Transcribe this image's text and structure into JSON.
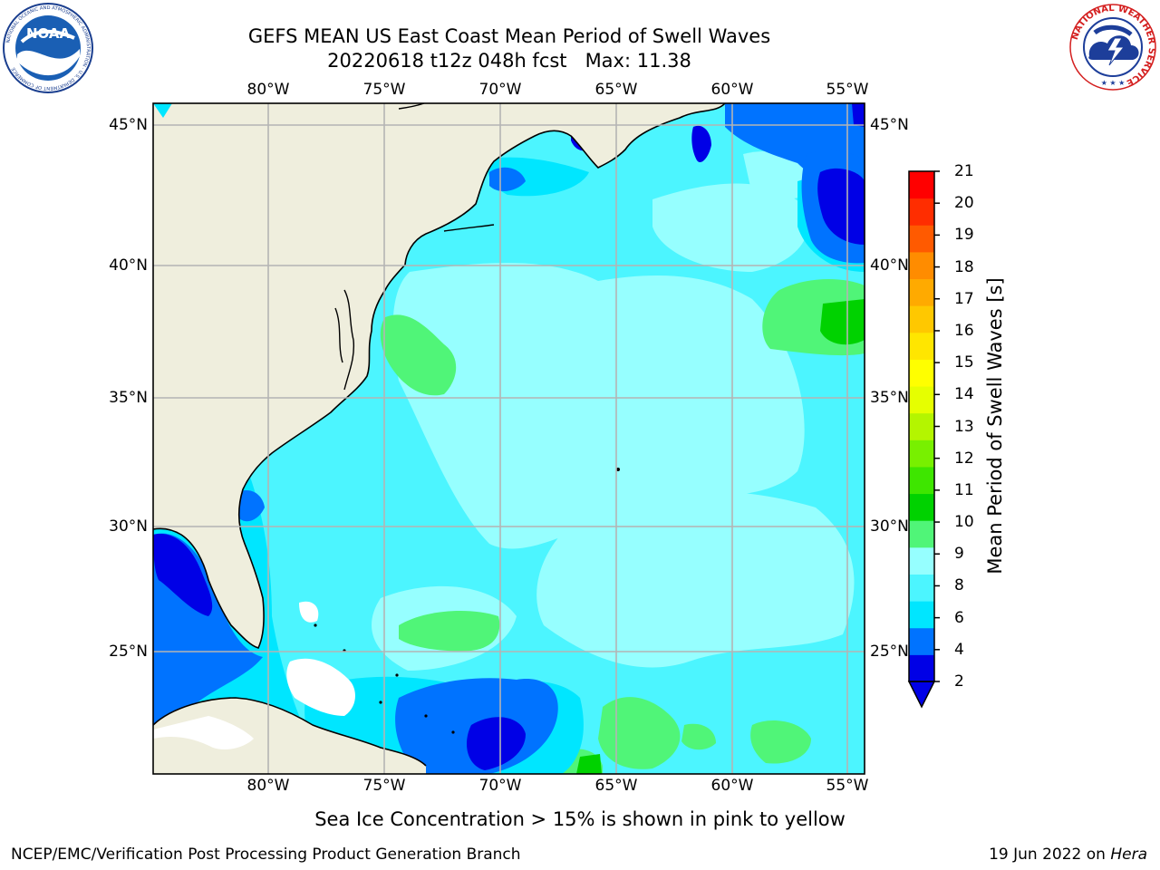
{
  "header": {
    "title_line1": "GEFS MEAN US East Coast Mean Period of Swell Waves",
    "title_line2": "20220618 t12z 048h fcst   Max: 11.38"
  },
  "logos": {
    "left": {
      "text": "NOAA",
      "ring_text": "NATIONAL OCEANIC AND ATMOSPHERIC ADMINISTRATION · U.S. DEPARTMENT OF COMMERCE"
    },
    "right": {
      "ring_text": "NATIONAL WEATHER SERVICE"
    }
  },
  "map": {
    "lon_labels": [
      "80°W",
      "75°W",
      "70°W",
      "65°W",
      "60°W",
      "55°W"
    ],
    "lat_labels": [
      "45°N",
      "40°N",
      "35°N",
      "30°N",
      "25°N"
    ],
    "colors": {
      "land": "#efeedd",
      "coast": "#000000",
      "grid": "#b4b4b4",
      "no_data": "#ffffff"
    }
  },
  "colorbar": {
    "title": "Mean Period of Swell Waves [s]",
    "labels": [
      "21",
      "20",
      "19",
      "18",
      "17",
      "16",
      "15",
      "14",
      "13",
      "12",
      "11",
      "10",
      "9",
      "8",
      "6",
      "4",
      "2"
    ],
    "colors": [
      "#0000e6",
      "#0073ff",
      "#00e6ff",
      "#4cf5ff",
      "#96ffff",
      "#50f578",
      "#00d200",
      "#3ee600",
      "#78f000",
      "#b4f500",
      "#e6ff00",
      "#ffff00",
      "#ffe600",
      "#ffc800",
      "#ffaa00",
      "#ff8c00",
      "#ff5a00",
      "#ff2d00",
      "#ff0000"
    ]
  },
  "caption": "Sea Ice Concentration > 15% is shown in pink to yellow",
  "footer": {
    "left": "NCEP/EMC/Verification Post Processing Product Generation Branch",
    "right_date": "19 Jun 2022 on ",
    "right_machine": "Hera"
  }
}
